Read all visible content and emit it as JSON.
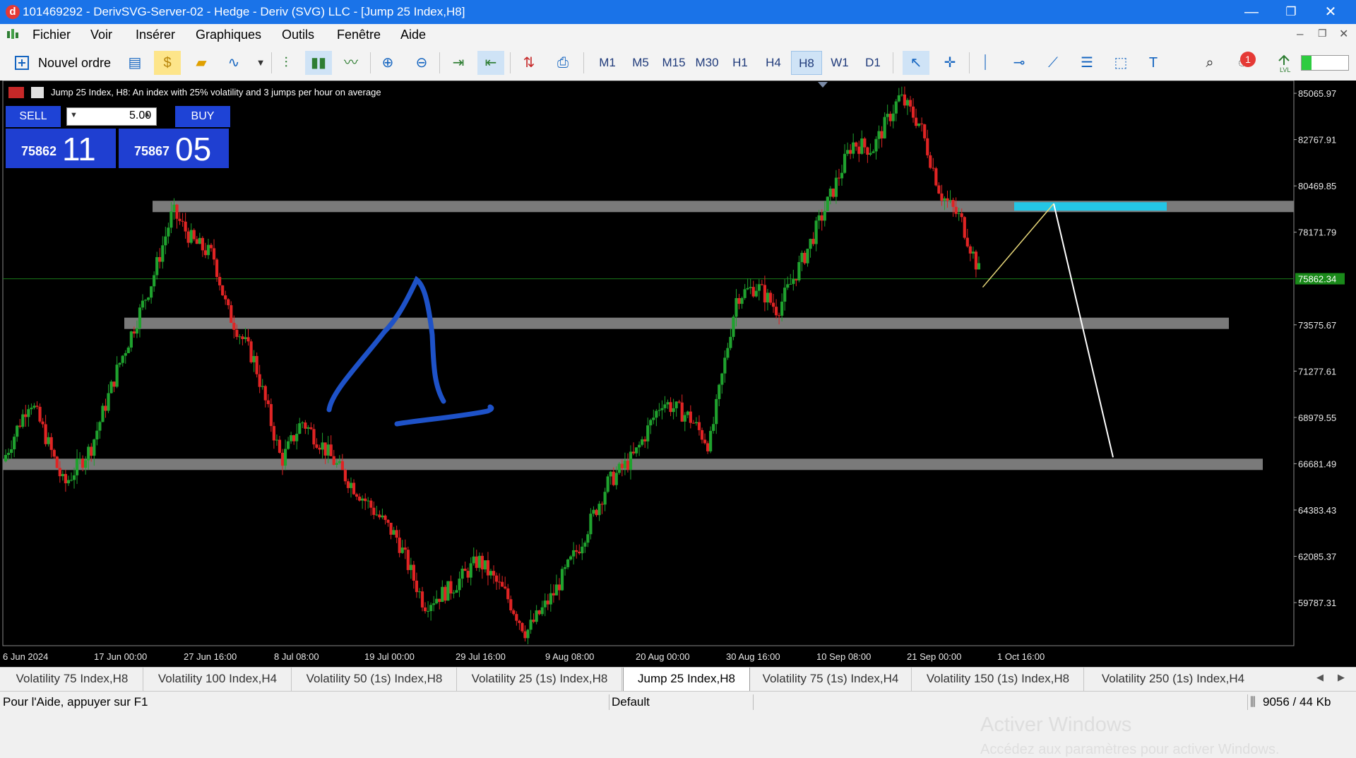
{
  "window": {
    "title": "101469292 - DerivSVG-Server-02 - Hedge - Deriv (SVG) LLC - [Jump 25 Index,H8]",
    "app_icon_letter": "d",
    "minimize": "—",
    "restore": "❐",
    "close": "✕"
  },
  "menu": {
    "items": [
      "Fichier",
      "Voir",
      "Insérer",
      "Graphiques",
      "Outils",
      "Fenêtre",
      "Aide"
    ],
    "right_icons": [
      "–",
      "❐",
      "✕"
    ]
  },
  "toolbar": {
    "new_order_label": "Nouvel ordre",
    "timeframes": [
      "M1",
      "M5",
      "M15",
      "M30",
      "H1",
      "H4",
      "H8",
      "W1",
      "D1"
    ],
    "active_timeframe": "H8",
    "notification_count": "1",
    "lvl_label": "LVL"
  },
  "chart": {
    "header_text": "Jump 25 Index, H8:  An index with 25% volatility and 3 jumps per hour on average",
    "trade_panel": {
      "sell_label": "SELL",
      "buy_label": "BUY",
      "lot_value": "5.00",
      "sell_price_prefix": "75862",
      "sell_price_big": "11",
      "buy_price_prefix": "75867",
      "buy_price_big": "05"
    },
    "current_price_label": "75862.34",
    "watermark_line1": "Activer Windows",
    "watermark_line2": "Accédez aux paramètres pour activer Windows."
  },
  "chart_data": {
    "type": "candlestick",
    "y_ticks": [
      "85065.97",
      "82767.91",
      "80469.85",
      "78171.79",
      "75862.34",
      "73575.67",
      "71277.61",
      "68979.55",
      "66681.49",
      "64383.43",
      "62085.37",
      "59787.31"
    ],
    "x_ticks": [
      "6 Jun 2024",
      "17 Jun 00:00",
      "27 Jun 16:00",
      "8 Jul 08:00",
      "19 Jul 00:00",
      "29 Jul 16:00",
      "9 Aug 08:00",
      "20 Aug 00:00",
      "30 Aug 16:00",
      "10 Sep 08:00",
      "21 Sep 00:00",
      "1 Oct 16:00"
    ],
    "ylim": [
      57650,
      85700
    ],
    "current_price": 75862.34,
    "horizontal_levels": [
      79450,
      73650,
      66650
    ],
    "close_path": [
      {
        "t": 0,
        "p": 66800
      },
      {
        "t": 4,
        "p": 69900
      },
      {
        "t": 6,
        "p": 68300
      },
      {
        "t": 9,
        "p": 65600
      },
      {
        "t": 13,
        "p": 67500
      },
      {
        "t": 17,
        "p": 71500
      },
      {
        "t": 22,
        "p": 75800
      },
      {
        "t": 25,
        "p": 79200
      },
      {
        "t": 28,
        "p": 77700
      },
      {
        "t": 31,
        "p": 77000
      },
      {
        "t": 33,
        "p": 74300
      },
      {
        "t": 37,
        "p": 71800
      },
      {
        "t": 41,
        "p": 66800
      },
      {
        "t": 44,
        "p": 68800
      },
      {
        "t": 47,
        "p": 67600
      },
      {
        "t": 50,
        "p": 66200
      },
      {
        "t": 54,
        "p": 64600
      },
      {
        "t": 58,
        "p": 63000
      },
      {
        "t": 62,
        "p": 59700
      },
      {
        "t": 66,
        "p": 60500
      },
      {
        "t": 70,
        "p": 61900
      },
      {
        "t": 74,
        "p": 60200
      },
      {
        "t": 77,
        "p": 58300
      },
      {
        "t": 81,
        "p": 60200
      },
      {
        "t": 85,
        "p": 62700
      },
      {
        "t": 89,
        "p": 65700
      },
      {
        "t": 93,
        "p": 67100
      },
      {
        "t": 97,
        "p": 69800
      },
      {
        "t": 101,
        "p": 69000
      },
      {
        "t": 104,
        "p": 67600
      },
      {
        "t": 108,
        "p": 75000
      },
      {
        "t": 111,
        "p": 75500
      },
      {
        "t": 114,
        "p": 74300
      },
      {
        "t": 118,
        "p": 77000
      },
      {
        "t": 122,
        "p": 80100
      },
      {
        "t": 125,
        "p": 82600
      },
      {
        "t": 128,
        "p": 82300
      },
      {
        "t": 132,
        "p": 84900
      },
      {
        "t": 135,
        "p": 83500
      },
      {
        "t": 138,
        "p": 80100
      },
      {
        "t": 141,
        "p": 78800
      },
      {
        "t": 144,
        "p": 75900
      }
    ],
    "x_axis_range": [
      0,
      190
    ]
  }
}
